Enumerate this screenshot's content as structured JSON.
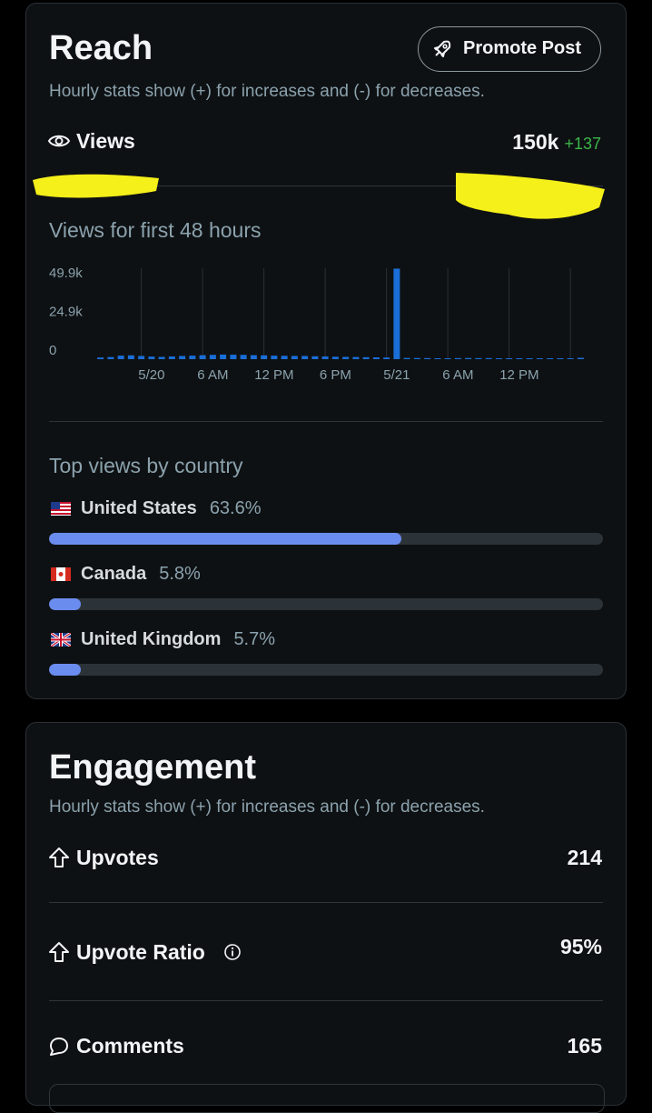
{
  "reach": {
    "title": "Reach",
    "button": "Promote Post",
    "subtitle": "Hourly stats show (+) for increases and (-) for decreases.",
    "views_label": "Views",
    "views_total": "150k",
    "views_change": "+137",
    "chart_data": {
      "type": "bar",
      "title": "Views for first 48 hours",
      "categories": [
        null,
        null,
        null,
        null,
        null,
        "5/20",
        null,
        null,
        null,
        null,
        null,
        "6 AM",
        null,
        null,
        null,
        null,
        null,
        "12 PM",
        null,
        null,
        null,
        null,
        null,
        "6 PM",
        null,
        null,
        null,
        null,
        null,
        "5/21",
        null,
        null,
        null,
        null,
        null,
        "6 AM",
        null,
        null,
        null,
        null,
        null,
        "12 PM",
        null,
        null,
        null,
        null,
        null,
        null
      ],
      "values": [
        500,
        800,
        1700,
        1900,
        1500,
        1100,
        900,
        1200,
        1500,
        1700,
        2000,
        2200,
        2400,
        2300,
        2200,
        2000,
        1900,
        1700,
        1600,
        1500,
        1500,
        1300,
        1200,
        1000,
        900,
        800,
        700,
        600,
        500,
        58000,
        200,
        150,
        100,
        0,
        0,
        100,
        150,
        100,
        100,
        0,
        0,
        0,
        0,
        0,
        0,
        0,
        0,
        300
      ],
      "color": "#1a6ed8",
      "ylim": [
        0,
        60000
      ],
      "yticks": [
        {
          "value": 49900,
          "label": "49.9k"
        },
        {
          "value": 24900,
          "label": "24.9k"
        },
        0
      ]
    },
    "countries_title": "Top views by country",
    "countries": [
      {
        "name": "United States",
        "value": 63.6,
        "value_label": "63.6%"
      },
      {
        "name": "Canada",
        "value": 5.8,
        "value_label": "5.8%"
      },
      {
        "name": "United Kingdom",
        "value": 5.7,
        "value_label": "5.7%"
      }
    ]
  },
  "engagement": {
    "title": "Engagement",
    "subtitle": "Hourly stats show (+) for increases and (-) for decreases.",
    "rows": [
      {
        "label": "Upvotes",
        "value": "214"
      },
      {
        "label": "Upvote Ratio",
        "value": "95%"
      },
      {
        "label": "Comments",
        "value": "165"
      }
    ]
  }
}
